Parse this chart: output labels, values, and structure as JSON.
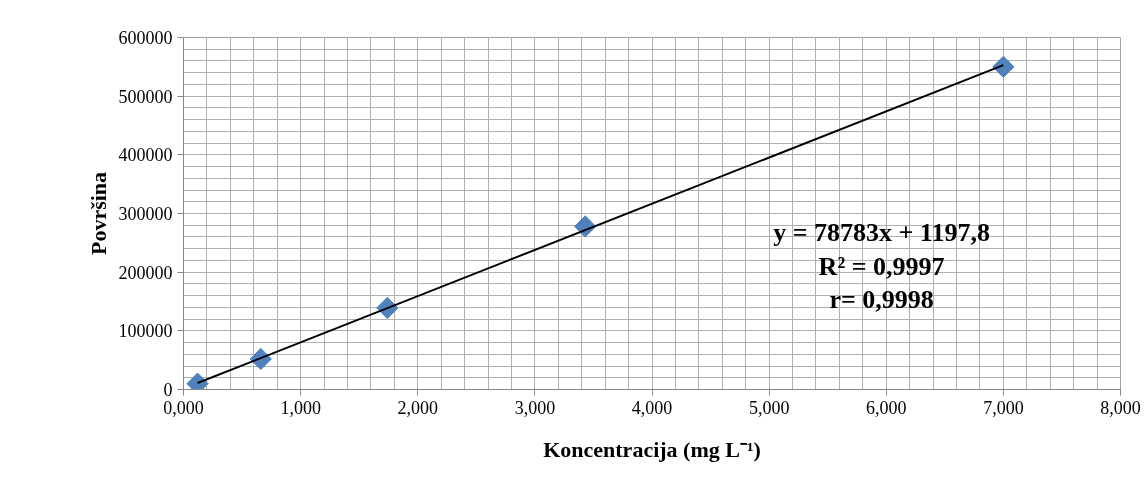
{
  "chart_data": {
    "type": "scatter",
    "xlabel": "Koncentracija (mg L⁻¹)",
    "ylabel": "Površina",
    "x": [
      0.12,
      0.66,
      1.74,
      3.43,
      7.0
    ],
    "series": [
      {
        "color": "#4f81bd",
        "marker": "diamond",
        "values": [
          10000,
          52000,
          139000,
          278000,
          550000
        ]
      },
      {
        "type": "line",
        "color": "#000000",
        "x": [
          0.12,
          7.0
        ],
        "values": [
          11000,
          553000
        ]
      }
    ],
    "xlim": [
      0,
      8
    ],
    "ylim": [
      0,
      600000
    ],
    "xticks": [
      {
        "value": 0,
        "label": "0,000"
      },
      {
        "value": 1,
        "label": "1,000"
      },
      {
        "value": 2,
        "label": "2,000"
      },
      {
        "value": 3,
        "label": "3,000"
      },
      {
        "value": 4,
        "label": "4,000"
      },
      {
        "value": 5,
        "label": "5,000"
      },
      {
        "value": 6,
        "label": "6,000"
      },
      {
        "value": 7,
        "label": "7,000"
      },
      {
        "value": 8,
        "label": "8,000"
      }
    ],
    "yticks": [
      0,
      100000,
      200000,
      300000,
      400000,
      500000,
      600000
    ],
    "grid": true,
    "annotations": [
      "y = 78783x + 1197,8",
      "R² = 0,9997",
      "r= 0,9998"
    ]
  }
}
